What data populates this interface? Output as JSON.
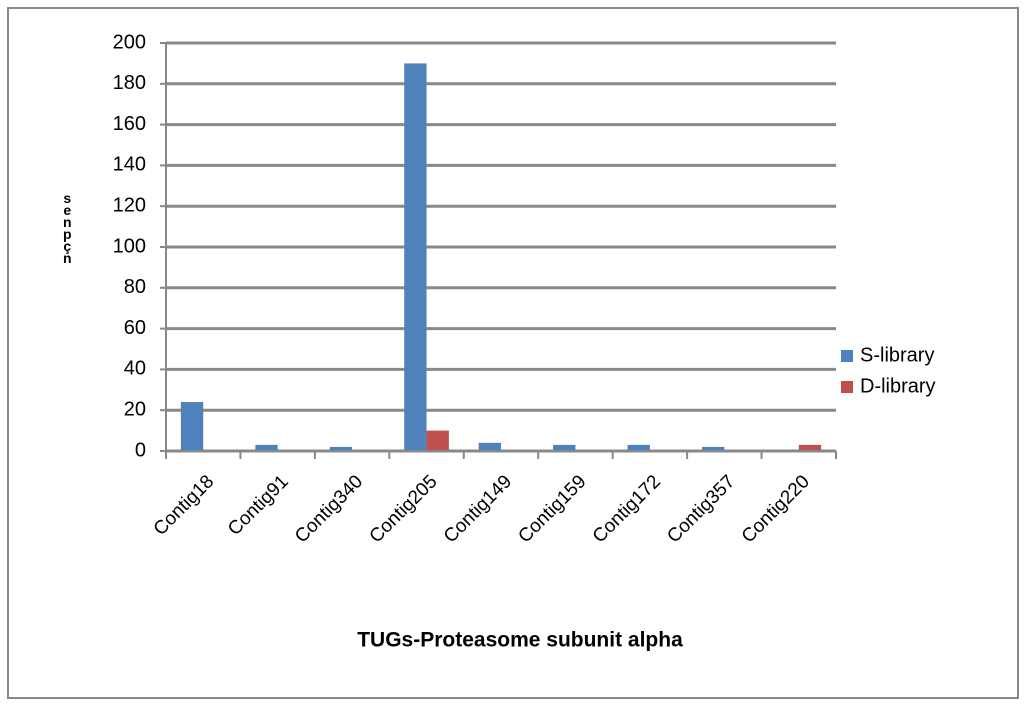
{
  "chart_data": {
    "type": "bar",
    "title": "TUGs-Proteasome subunit alpha",
    "y_label": "senpçn",
    "categories": [
      "Contig18",
      "Contig91",
      "Contig340",
      "Contig205",
      "Contig149",
      "Contig159",
      "Contig172",
      "Contig357",
      "Contig220"
    ],
    "series": [
      {
        "name": "S-library",
        "color": "#4f81bd",
        "values": [
          24,
          3,
          2,
          190,
          4,
          3,
          3,
          2,
          0
        ]
      },
      {
        "name": "D-library",
        "color": "#c0504d",
        "values": [
          0,
          0,
          0,
          10,
          0,
          0,
          0,
          0,
          3
        ]
      }
    ],
    "ylim": [
      0,
      200
    ],
    "yticks": [
      0,
      20,
      40,
      60,
      80,
      100,
      120,
      140,
      160,
      180,
      200
    ],
    "grid": true,
    "legend": "right"
  }
}
